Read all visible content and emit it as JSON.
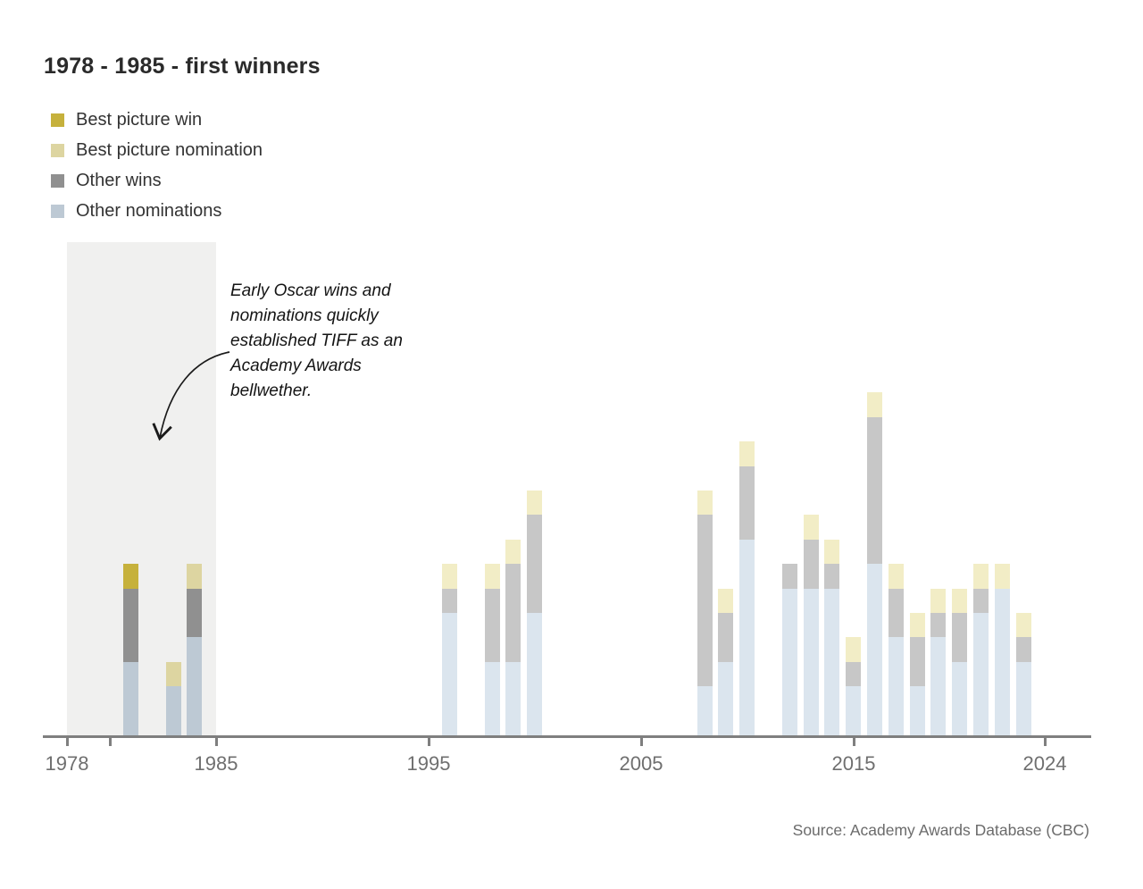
{
  "title": "1978 - 1985 - first winners",
  "legend": {
    "items": [
      {
        "label": "Best picture win",
        "key": "best_picture_win"
      },
      {
        "label": "Best picture nomination",
        "key": "best_picture_nomination"
      },
      {
        "label": "Other wins",
        "key": "other_wins"
      },
      {
        "label": "Other nominations",
        "key": "other_nominations"
      }
    ]
  },
  "annotation": {
    "text": "Early Oscar wins and\nnominations quickly\nestablished TIFF as an\nAcademy Awards\nbellwether."
  },
  "source": "Source: Academy Awards Database (CBC)",
  "axis": {
    "ticks": [
      1978,
      1980,
      1985,
      1995,
      2005,
      2015,
      2024
    ],
    "labels": [
      {
        "year": 1978,
        "text": "1978"
      },
      {
        "year": 1985,
        "text": "1985"
      },
      {
        "year": 1995,
        "text": "1995"
      },
      {
        "year": 2005,
        "text": "2005"
      },
      {
        "year": 2015,
        "text": "2015"
      },
      {
        "year": 2024,
        "text": "2024"
      }
    ]
  },
  "chart_data": {
    "type": "bar",
    "stacked": true,
    "x_domain": [
      1978,
      2025
    ],
    "ylim_units": [
      0,
      15
    ],
    "highlight_region_years": [
      1978,
      1985
    ],
    "legend_position": "top-left",
    "grid": false,
    "categories": [
      1981,
      1983,
      1984,
      1996,
      1998,
      1999,
      2000,
      2008,
      2009,
      2010,
      2012,
      2013,
      2014,
      2015,
      2016,
      2017,
      2018,
      2019,
      2020,
      2021,
      2022,
      2023
    ],
    "series": [
      {
        "name": "Best picture win",
        "key": "best_picture_win",
        "values": [
          1,
          0,
          0,
          0,
          0,
          0,
          0,
          0,
          0,
          0,
          0,
          0,
          0,
          0,
          0,
          0,
          0,
          0,
          0,
          0,
          0,
          0
        ]
      },
      {
        "name": "Best picture nomination",
        "key": "best_picture_nomination",
        "values": [
          0,
          1,
          1,
          1,
          1,
          1,
          1,
          1,
          1,
          1,
          0,
          1,
          1,
          1,
          1,
          1,
          1,
          1,
          1,
          1,
          1,
          1
        ]
      },
      {
        "name": "Other wins",
        "key": "other_wins",
        "values": [
          3,
          0,
          2,
          1,
          3,
          4,
          4,
          7,
          2,
          3,
          1,
          2,
          1,
          1,
          6,
          2,
          2,
          1,
          2,
          1,
          0,
          1
        ]
      },
      {
        "name": "Other nominations",
        "key": "other_nominations",
        "values": [
          3,
          2,
          4,
          5,
          3,
          3,
          5,
          2,
          3,
          8,
          6,
          6,
          6,
          2,
          7,
          4,
          2,
          4,
          3,
          5,
          6,
          3
        ]
      }
    ]
  },
  "colors": {
    "best_picture_win": "#c6b13c",
    "best_picture_nomination": "#ddd5a1",
    "other_wins": "#909090",
    "other_nominations": "#bdc9d4",
    "faded": {
      "best_picture_win": "#e5dc9f",
      "best_picture_nomination": "#f2edc6",
      "other_wins": "#c7c7c7",
      "other_nominations": "#dbe5ee"
    },
    "highlight_region": "#f0f0ef",
    "axis": "#7f7f7f",
    "tick_label": "#6f6f6f",
    "annotation_arrow": "#1a1a1a"
  }
}
